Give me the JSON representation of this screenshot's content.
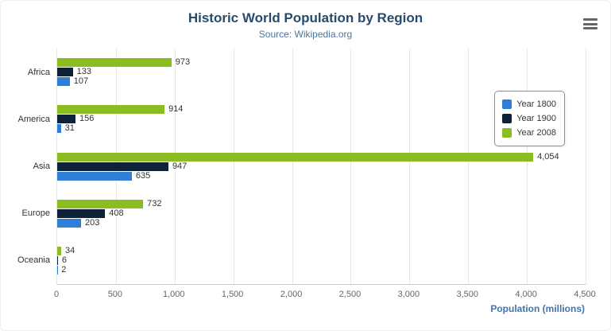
{
  "chart_data": {
    "type": "bar",
    "title": "Historic World Population by Region",
    "subtitle": "Source: Wikipedia.org",
    "categories": [
      "Africa",
      "America",
      "Asia",
      "Europe",
      "Oceania"
    ],
    "series": [
      {
        "name": "Year 1800",
        "color": "#2f7ed8",
        "values": [
          107,
          31,
          635,
          203,
          2
        ]
      },
      {
        "name": "Year 1900",
        "color": "#0d233a",
        "values": [
          133,
          156,
          947,
          408,
          6
        ]
      },
      {
        "name": "Year 2008",
        "color": "#8bbc21",
        "values": [
          973,
          914,
          4054,
          732,
          34
        ]
      }
    ],
    "series_order_top_to_bottom": [
      "Year 2008",
      "Year 1900",
      "Year 1800"
    ],
    "xlabel": "Population (millions)",
    "xlim": [
      0,
      4500
    ],
    "ticks": [
      0,
      500,
      1000,
      1500,
      2000,
      2500,
      3000,
      3500,
      4000,
      4500
    ],
    "tick_labels": [
      "0",
      "500",
      "1,000",
      "1,500",
      "2,000",
      "2,500",
      "3,000",
      "3,500",
      "4,000",
      "4,500"
    ],
    "legend_position": "right",
    "grid": true,
    "data_label_format": "thousands-comma"
  }
}
